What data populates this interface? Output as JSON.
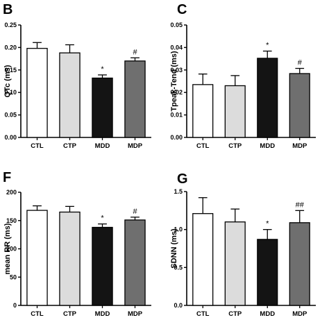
{
  "chart_data": [
    {
      "panel": "B",
      "type": "bar",
      "ylabel": "QTc (ms)",
      "categories": [
        "CTL",
        "CTP",
        "MDD",
        "MDP"
      ],
      "values": [
        0.198,
        0.188,
        0.132,
        0.17
      ],
      "errors": [
        0.013,
        0.018,
        0.007,
        0.007
      ],
      "annotations": [
        "",
        "",
        "*",
        "#"
      ],
      "ylim": [
        0.0,
        0.25
      ],
      "yticks": [
        "0.00",
        "0.05",
        "0.10",
        "0.15",
        "0.20",
        "0.25"
      ],
      "colors": [
        "#ffffff",
        "#dcdcdc",
        "#141414",
        "#6f6f6f"
      ]
    },
    {
      "panel": "C",
      "type": "bar",
      "ylabel": "Tpeak-Tend (ms)",
      "categories": [
        "CTL",
        "CTP",
        "MDD",
        "MDP"
      ],
      "values": [
        0.0235,
        0.023,
        0.0352,
        0.0284
      ],
      "errors": [
        0.0047,
        0.0045,
        0.0032,
        0.0023
      ],
      "annotations": [
        "",
        "",
        "*",
        "#"
      ],
      "ylim": [
        0.0,
        0.05
      ],
      "yticks": [
        "0.00",
        "0.01",
        "0.02",
        "0.03",
        "0.04",
        "0.05"
      ],
      "colors": [
        "#ffffff",
        "#dcdcdc",
        "#141414",
        "#6f6f6f"
      ]
    },
    {
      "panel": "F",
      "type": "bar",
      "ylabel": "mean RR (ms)",
      "categories": [
        "CTL",
        "CTP",
        "MDD",
        "MDP"
      ],
      "values": [
        168,
        165,
        138,
        151
      ],
      "errors": [
        8,
        10,
        6,
        5
      ],
      "annotations": [
        "",
        "",
        "*",
        "#"
      ],
      "ylim": [
        0,
        200
      ],
      "yticks": [
        "0",
        "50",
        "100",
        "150",
        "200"
      ],
      "colors": [
        "#ffffff",
        "#dcdcdc",
        "#141414",
        "#6f6f6f"
      ]
    },
    {
      "panel": "G",
      "type": "bar",
      "ylabel": "SDNN (ms)",
      "categories": [
        "CTL",
        "CTP",
        "MDD",
        "MDP"
      ],
      "values": [
        1.21,
        1.1,
        0.87,
        1.09
      ],
      "errors": [
        0.21,
        0.17,
        0.13,
        0.16
      ],
      "annotations": [
        "",
        "",
        "*",
        "##"
      ],
      "ylim": [
        0.0,
        1.5
      ],
      "yticks": [
        "0.0",
        "0.5",
        "1.0",
        "1.5"
      ],
      "colors": [
        "#ffffff",
        "#dcdcdc",
        "#141414",
        "#6f6f6f"
      ]
    }
  ]
}
